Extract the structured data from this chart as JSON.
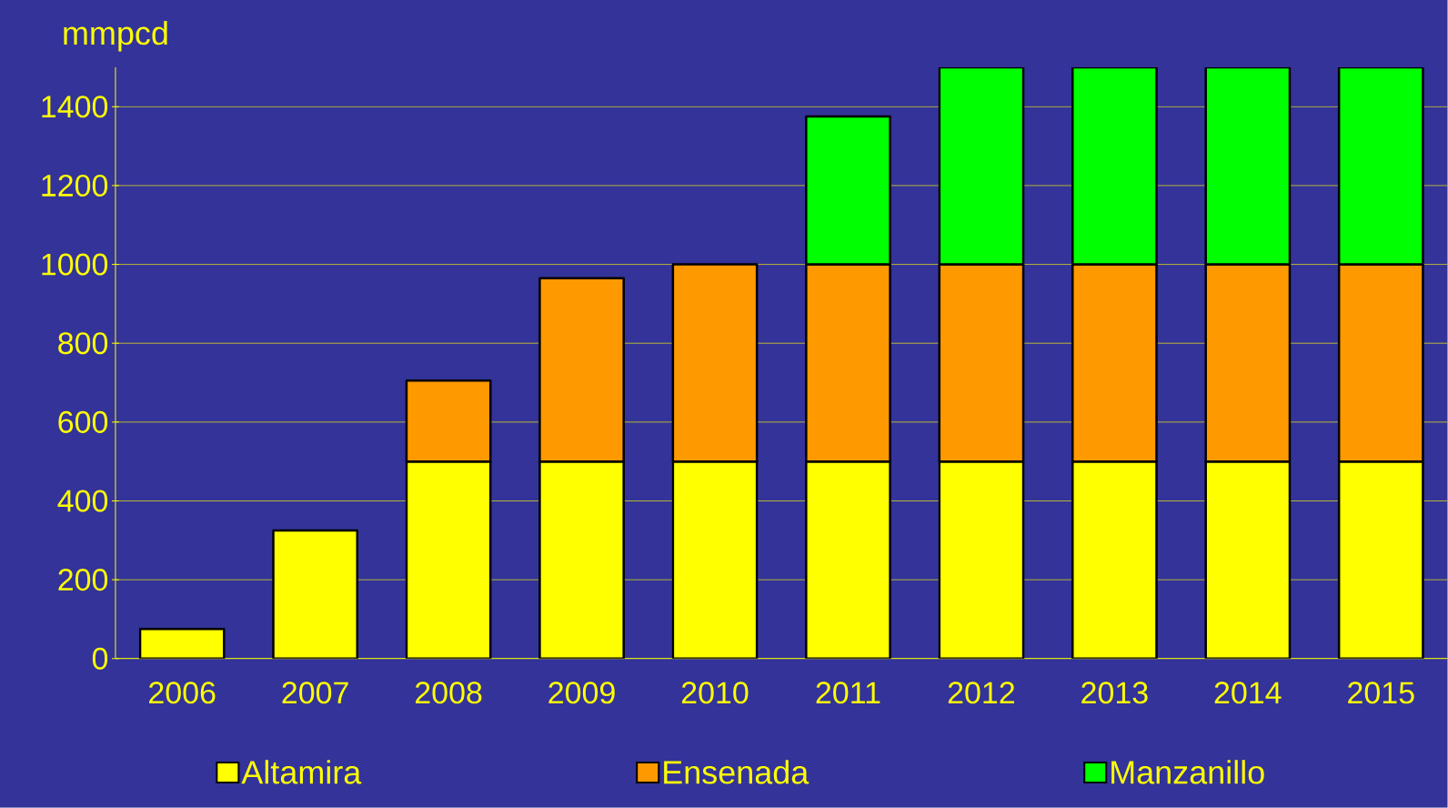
{
  "chart_data": {
    "type": "bar",
    "stacked": true,
    "ylabel": "mmpcd",
    "categories": [
      "2006",
      "2007",
      "2008",
      "2009",
      "2010",
      "2011",
      "2012",
      "2013",
      "2014",
      "2015"
    ],
    "series": [
      {
        "name": "Altamira",
        "color": "#ffff00",
        "values": [
          75,
          325,
          500,
          500,
          500,
          500,
          500,
          500,
          500,
          500
        ]
      },
      {
        "name": "Ensenada",
        "color": "#ff9900",
        "values": [
          null,
          null,
          205,
          465,
          500,
          500,
          500,
          500,
          500,
          500
        ]
      },
      {
        "name": "Manzanillo",
        "color": "#00ff00",
        "values": [
          null,
          null,
          null,
          null,
          null,
          375,
          500,
          500,
          500,
          500
        ]
      }
    ],
    "ylim": [
      0,
      1500
    ],
    "yticks": [
      0,
      200,
      400,
      600,
      800,
      1000,
      1200,
      1400
    ],
    "grid": "y",
    "legend": "bottom"
  }
}
